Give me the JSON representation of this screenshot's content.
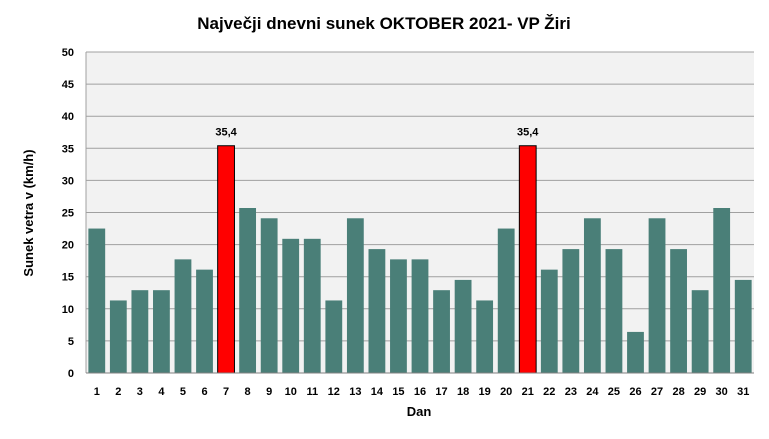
{
  "chart_data": {
    "type": "bar",
    "title": "Največji dnevni sunek OKTOBER  2021- VP Žiri",
    "xlabel": "Dan",
    "ylabel": "Sunek vetra  v (km/h)",
    "ylim": [
      0,
      50
    ],
    "yticks": [
      "0",
      "5",
      "10",
      "15",
      "20",
      "25",
      "30",
      "35",
      "40",
      "45",
      "50"
    ],
    "categories": [
      "1",
      "2",
      "3",
      "4",
      "5",
      "6",
      "7",
      "8",
      "9",
      "10",
      "11",
      "12",
      "13",
      "14",
      "15",
      "16",
      "17",
      "18",
      "19",
      "20",
      "21",
      "22",
      "23",
      "24",
      "25",
      "26",
      "27",
      "28",
      "29",
      "30",
      "31"
    ],
    "values": [
      22.5,
      11.3,
      12.9,
      12.9,
      17.7,
      16.1,
      35.4,
      25.7,
      24.1,
      20.9,
      20.9,
      11.3,
      24.1,
      19.3,
      17.7,
      17.7,
      12.9,
      14.5,
      11.3,
      22.5,
      35.4,
      16.1,
      19.3,
      24.1,
      19.3,
      6.4,
      24.1,
      19.3,
      12.9,
      25.7,
      14.5
    ],
    "highlight_days": [
      "7",
      "21"
    ],
    "data_labels": [
      {
        "day": "7",
        "text": "35,4"
      },
      {
        "day": "21",
        "text": "35,4"
      }
    ],
    "grid": true,
    "legend": "none",
    "colors": {
      "bar": "#4a7f78",
      "highlight": "#ff0000",
      "plot_background": "#f2f2f2",
      "grid": "#a0a0a0"
    }
  }
}
